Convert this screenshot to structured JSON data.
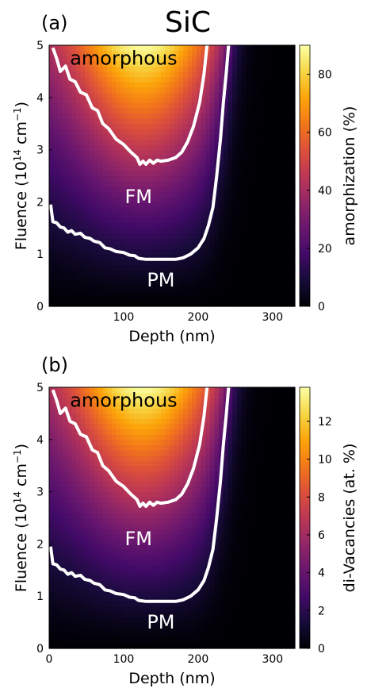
{
  "figure": {
    "title": "SiC"
  },
  "chart_data": [
    {
      "type": "heatmap",
      "panel_label": "(a)",
      "xlabel": "Depth (nm)",
      "ylabel": "Fluence (10<sup>14</sup> cm<sup>-1</sup>)",
      "ylabel_parts": [
        "Fluence (10",
        "14",
        " cm",
        "−1",
        ")"
      ],
      "colorbar_label": "amorphization (%)",
      "xlim": [
        0,
        330
      ],
      "ylim": [
        0,
        5
      ],
      "xticks": [
        100,
        200,
        300
      ],
      "yticks": [
        0,
        1,
        2,
        3,
        4,
        5
      ],
      "colorbar_range": [
        0,
        90
      ],
      "colorbar_ticks": [
        0,
        20,
        40,
        60,
        80
      ],
      "colormap": "inferno",
      "region_labels": [
        {
          "text": "amorphous",
          "x": 100,
          "y": 4.75
        },
        {
          "text": "FM",
          "x": 120,
          "y": 2.1
        },
        {
          "text": "PM",
          "x": 150,
          "y": 0.5
        }
      ],
      "contours": [
        {
          "name": "upper",
          "points": [
            [
              5,
              4.95
            ],
            [
              10,
              4.75
            ],
            [
              15,
              4.5
            ],
            [
              22,
              4.6
            ],
            [
              28,
              4.35
            ],
            [
              35,
              4.3
            ],
            [
              42,
              4.1
            ],
            [
              50,
              4.05
            ],
            [
              58,
              3.8
            ],
            [
              65,
              3.75
            ],
            [
              72,
              3.5
            ],
            [
              80,
              3.4
            ],
            [
              90,
              3.2
            ],
            [
              100,
              3.1
            ],
            [
              110,
              2.95
            ],
            [
              118,
              2.85
            ],
            [
              122,
              2.72
            ],
            [
              126,
              2.78
            ],
            [
              130,
              2.72
            ],
            [
              135,
              2.8
            ],
            [
              140,
              2.74
            ],
            [
              145,
              2.8
            ],
            [
              150,
              2.78
            ],
            [
              160,
              2.8
            ],
            [
              170,
              2.85
            ],
            [
              178,
              2.95
            ],
            [
              186,
              3.15
            ],
            [
              194,
              3.45
            ],
            [
              202,
              3.9
            ],
            [
              208,
              4.45
            ],
            [
              212,
              5.0
            ]
          ]
        },
        {
          "name": "lower",
          "points": [
            [
              2,
              1.95
            ],
            [
              5,
              1.62
            ],
            [
              10,
              1.6
            ],
            [
              15,
              1.52
            ],
            [
              20,
              1.5
            ],
            [
              25,
              1.42
            ],
            [
              30,
              1.45
            ],
            [
              35,
              1.38
            ],
            [
              42,
              1.4
            ],
            [
              48,
              1.32
            ],
            [
              55,
              1.3
            ],
            [
              60,
              1.25
            ],
            [
              68,
              1.22
            ],
            [
              75,
              1.12
            ],
            [
              82,
              1.1
            ],
            [
              90,
              1.05
            ],
            [
              100,
              1.03
            ],
            [
              108,
              0.98
            ],
            [
              115,
              0.97
            ],
            [
              120,
              0.92
            ],
            [
              130,
              0.9
            ],
            [
              150,
              0.9
            ],
            [
              170,
              0.9
            ],
            [
              180,
              0.93
            ],
            [
              190,
              1.0
            ],
            [
              200,
              1.12
            ],
            [
              208,
              1.3
            ],
            [
              214,
              1.55
            ],
            [
              220,
              1.9
            ],
            [
              225,
              2.5
            ],
            [
              230,
              3.2
            ],
            [
              234,
              3.9
            ],
            [
              238,
              4.5
            ],
            [
              241,
              5.0
            ]
          ]
        }
      ]
    },
    {
      "type": "heatmap",
      "panel_label": "(b)",
      "xlabel": "Depth (nm)",
      "ylabel": "Fluence (10<sup>14</sup> cm<sup>-1</sup>)",
      "ylabel_parts": [
        "Fluence (10",
        "14",
        " cm",
        "−1",
        ")"
      ],
      "colorbar_label": "di-Vacancies (at. %)",
      "xlim": [
        0,
        330
      ],
      "ylim": [
        0,
        5
      ],
      "xticks": [
        0,
        100,
        200,
        300
      ],
      "yticks": [
        0,
        1,
        2,
        3,
        4,
        5
      ],
      "colorbar_range": [
        0,
        13.8
      ],
      "colorbar_ticks": [
        0,
        2,
        4,
        6,
        8,
        10,
        12
      ],
      "colormap": "inferno",
      "region_labels": [
        {
          "text": "amorphous",
          "x": 100,
          "y": 4.75
        },
        {
          "text": "FM",
          "x": 120,
          "y": 2.1
        },
        {
          "text": "PM",
          "x": 150,
          "y": 0.5
        }
      ],
      "contours": [
        {
          "name": "upper",
          "points": [
            [
              5,
              4.95
            ],
            [
              10,
              4.75
            ],
            [
              15,
              4.5
            ],
            [
              22,
              4.6
            ],
            [
              28,
              4.35
            ],
            [
              35,
              4.3
            ],
            [
              42,
              4.1
            ],
            [
              50,
              4.05
            ],
            [
              58,
              3.8
            ],
            [
              65,
              3.75
            ],
            [
              72,
              3.5
            ],
            [
              80,
              3.4
            ],
            [
              90,
              3.2
            ],
            [
              100,
              3.1
            ],
            [
              110,
              2.95
            ],
            [
              118,
              2.85
            ],
            [
              122,
              2.72
            ],
            [
              126,
              2.78
            ],
            [
              130,
              2.72
            ],
            [
              135,
              2.8
            ],
            [
              140,
              2.74
            ],
            [
              145,
              2.8
            ],
            [
              150,
              2.78
            ],
            [
              160,
              2.8
            ],
            [
              170,
              2.85
            ],
            [
              178,
              2.95
            ],
            [
              186,
              3.15
            ],
            [
              194,
              3.45
            ],
            [
              202,
              3.9
            ],
            [
              208,
              4.45
            ],
            [
              212,
              5.0
            ]
          ]
        },
        {
          "name": "lower",
          "points": [
            [
              2,
              1.95
            ],
            [
              5,
              1.62
            ],
            [
              10,
              1.6
            ],
            [
              15,
              1.52
            ],
            [
              20,
              1.5
            ],
            [
              25,
              1.42
            ],
            [
              30,
              1.45
            ],
            [
              35,
              1.38
            ],
            [
              42,
              1.4
            ],
            [
              48,
              1.32
            ],
            [
              55,
              1.3
            ],
            [
              60,
              1.25
            ],
            [
              68,
              1.22
            ],
            [
              75,
              1.12
            ],
            [
              82,
              1.1
            ],
            [
              90,
              1.05
            ],
            [
              100,
              1.03
            ],
            [
              108,
              0.98
            ],
            [
              115,
              0.97
            ],
            [
              120,
              0.92
            ],
            [
              130,
              0.9
            ],
            [
              150,
              0.9
            ],
            [
              170,
              0.9
            ],
            [
              180,
              0.93
            ],
            [
              190,
              1.0
            ],
            [
              200,
              1.12
            ],
            [
              208,
              1.3
            ],
            [
              214,
              1.55
            ],
            [
              220,
              1.9
            ],
            [
              225,
              2.5
            ],
            [
              230,
              3.2
            ],
            [
              234,
              3.9
            ],
            [
              238,
              4.5
            ],
            [
              241,
              5.0
            ]
          ]
        }
      ]
    }
  ]
}
